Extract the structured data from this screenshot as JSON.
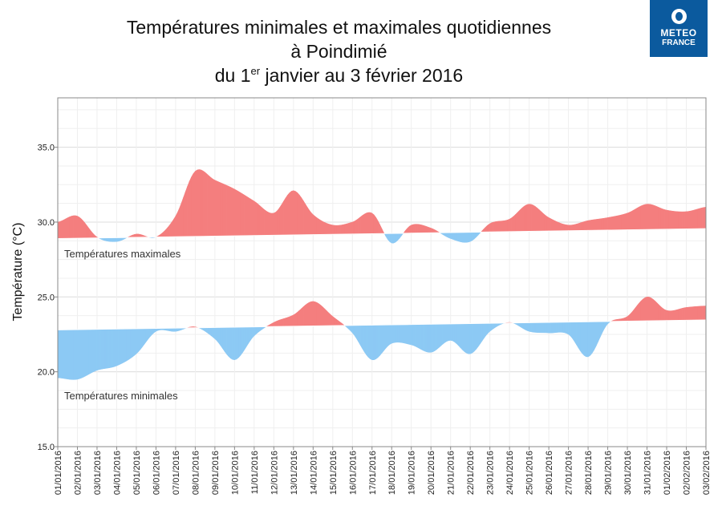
{
  "title": {
    "line1": "Températures minimales et maximales quotidiennes",
    "line2": "à Poindimié",
    "line3_pre": "du 1",
    "line3_sup": "er",
    "line3_post": " janvier au 3 février 2016"
  },
  "logo": {
    "line1": "METEO",
    "line2": "FRANCE"
  },
  "colors": {
    "above": "#f47e7e",
    "below": "#8cc9f4",
    "normal": "#ffffff"
  },
  "chart_data": {
    "type": "area",
    "ylabel": "Température (°C)",
    "ylim": [
      15,
      38.3
    ],
    "yticks": [
      15.0,
      20.0,
      25.0,
      30.0,
      35.0
    ],
    "ytick_labels": [
      "15.0",
      "20.0",
      "25.0",
      "30.0",
      "35.0"
    ],
    "grid": true,
    "categories": [
      "01/01/2016",
      "02/01/2016",
      "03/01/2016",
      "04/01/2016",
      "05/01/2016",
      "06/01/2016",
      "07/01/2016",
      "08/01/2016",
      "09/01/2016",
      "10/01/2016",
      "11/01/2016",
      "12/01/2016",
      "13/01/2016",
      "14/01/2016",
      "15/01/2016",
      "16/01/2016",
      "17/01/2016",
      "18/01/2016",
      "19/01/2016",
      "20/01/2016",
      "21/01/2016",
      "22/01/2016",
      "23/01/2016",
      "24/01/2016",
      "25/01/2016",
      "26/01/2016",
      "27/01/2016",
      "28/01/2016",
      "29/01/2016",
      "30/01/2016",
      "31/01/2016",
      "01/02/2016",
      "02/02/2016",
      "03/02/2016"
    ],
    "series": [
      {
        "name": "Températures maximales",
        "values": [
          30.0,
          30.4,
          29.0,
          28.7,
          29.2,
          29.0,
          30.4,
          33.4,
          32.8,
          32.2,
          31.4,
          30.6,
          32.1,
          30.5,
          29.8,
          30.0,
          30.6,
          28.6,
          29.8,
          29.6,
          28.9,
          28.7,
          29.9,
          30.2,
          31.2,
          30.3,
          29.8,
          30.1,
          30.3,
          30.6,
          31.2,
          30.8,
          30.7,
          31.0
        ],
        "normals": [
          28.9,
          28.92,
          28.94,
          28.96,
          28.98,
          29.0,
          29.02,
          29.04,
          29.06,
          29.08,
          29.1,
          29.12,
          29.14,
          29.16,
          29.18,
          29.2,
          29.22,
          29.24,
          29.26,
          29.28,
          29.3,
          29.32,
          29.34,
          29.36,
          29.38,
          29.4,
          29.42,
          29.44,
          29.46,
          29.48,
          29.5,
          29.52,
          29.54,
          29.56
        ]
      },
      {
        "name": "Températures minimales",
        "values": [
          19.6,
          19.5,
          20.1,
          20.4,
          21.2,
          22.7,
          22.7,
          23.0,
          22.2,
          20.8,
          22.4,
          23.3,
          23.8,
          24.7,
          23.7,
          22.6,
          20.8,
          21.9,
          21.8,
          21.3,
          22.1,
          21.2,
          22.7,
          23.3,
          22.7,
          22.6,
          22.5,
          21.0,
          23.2,
          23.7,
          25.0,
          24.1,
          24.3,
          24.4
        ],
        "normals": [
          22.8,
          22.82,
          22.84,
          22.86,
          22.88,
          22.9,
          22.92,
          22.94,
          22.96,
          22.98,
          23.0,
          23.02,
          23.04,
          23.06,
          23.08,
          23.1,
          23.12,
          23.14,
          23.16,
          23.18,
          23.2,
          23.22,
          23.24,
          23.26,
          23.28,
          23.3,
          23.32,
          23.34,
          23.36,
          23.38,
          23.4,
          23.42,
          23.44,
          23.46
        ]
      }
    ]
  }
}
